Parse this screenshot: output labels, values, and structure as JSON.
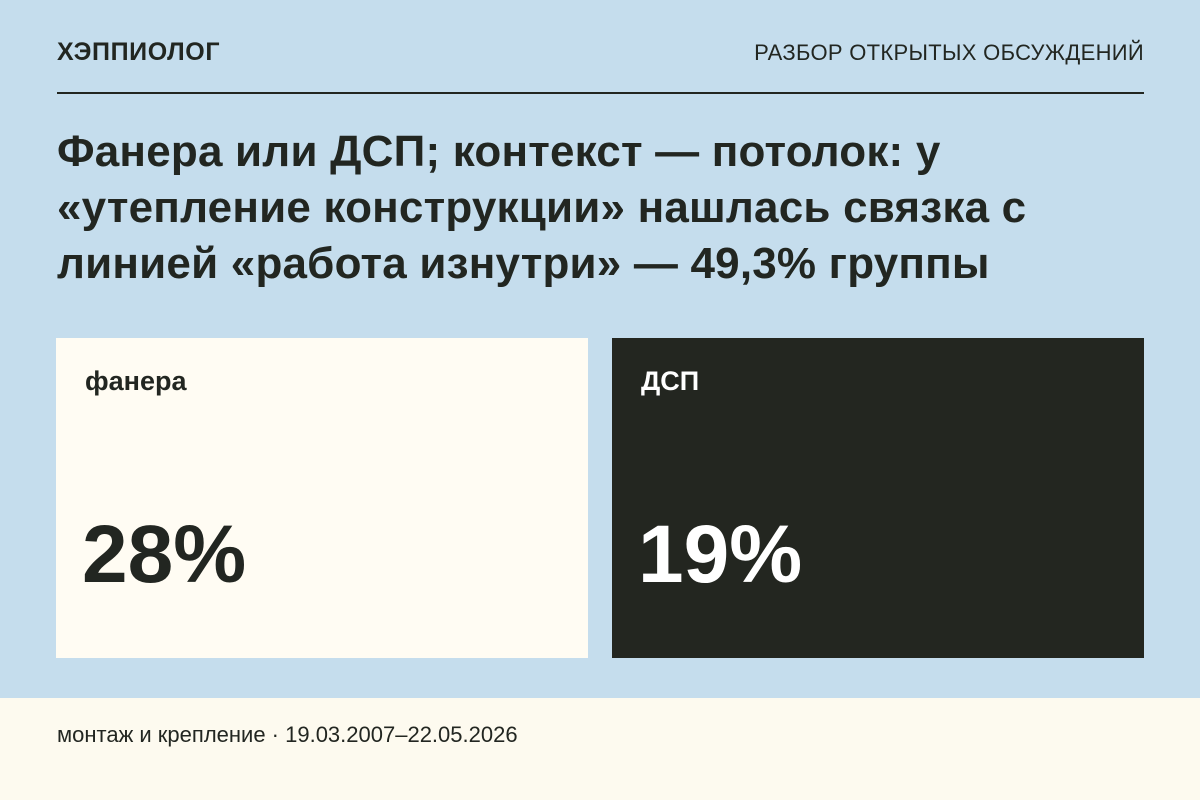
{
  "header": {
    "brand": "ХЭППИОЛОГ",
    "section": "РАЗБОР ОТКРЫТЫХ ОБСУЖДЕНИЙ"
  },
  "headline": "Фанера или ДСП; контекст — потолок: у «утепление конструкции» нашлась связка с линией «работа изнутри» — 49,3% группы",
  "options": [
    {
      "label": "фанера",
      "value": "28%",
      "background": "#fffcf3",
      "text_color": "#222621"
    },
    {
      "label": "ДСП",
      "value": "19%",
      "background": "#232620",
      "text_color": "#ffffff"
    }
  ],
  "footer": {
    "text": "монтаж и крепление · 19.03.2007–22.05.2026"
  },
  "colors": {
    "page_background": "#c5dded",
    "footer_background": "#fdfaef",
    "ink": "#222621"
  }
}
